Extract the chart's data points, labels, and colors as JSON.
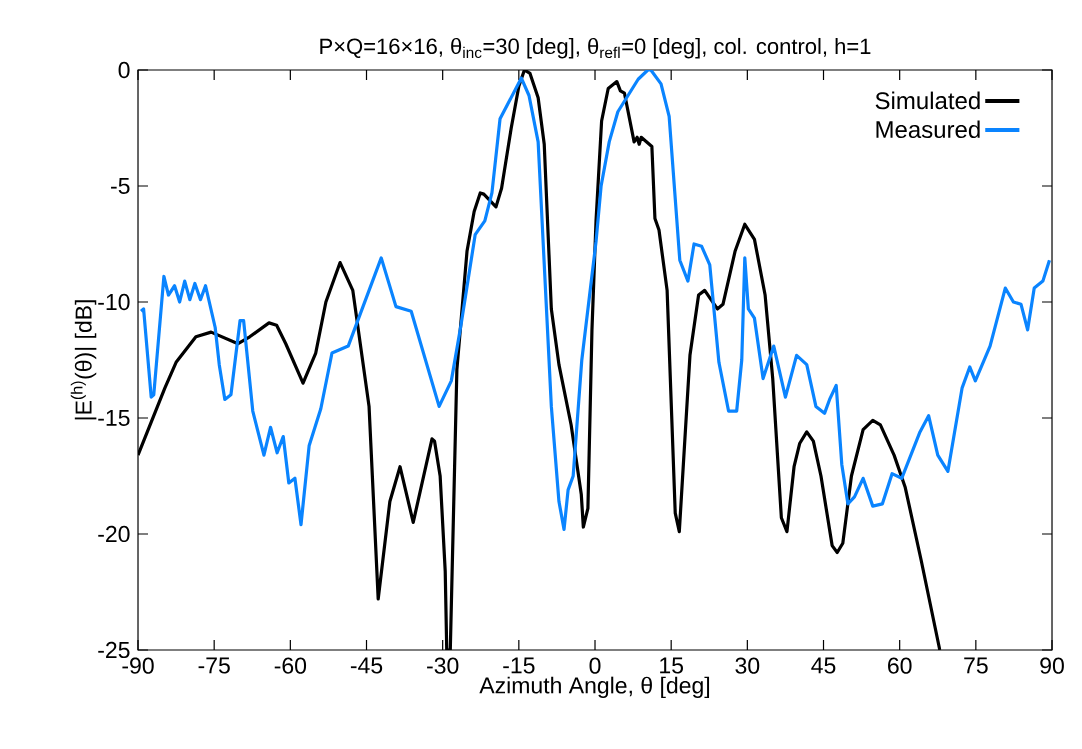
{
  "chart_data": {
    "type": "line",
    "title": "P×Q=16×16, θ$_{inc}$=30 [deg], θ$_{refl}$=0 [deg], col. control, h=1",
    "xlabel": "Azimuth Angle, θ [deg]",
    "ylabel": "|E$^{(h)}$(θ)| [dB]",
    "xlim": [
      -90,
      90
    ],
    "ylim": [
      -25,
      0
    ],
    "xticks": [
      -90,
      -75,
      -60,
      -45,
      -30,
      -15,
      0,
      15,
      30,
      45,
      60,
      75,
      90
    ],
    "yticks": [
      -25,
      -20,
      -15,
      -10,
      -5,
      0
    ],
    "grid": false,
    "legend": "top right",
    "marker": "none",
    "line_style": "solid",
    "series": [
      {
        "name": "Simulated",
        "color": "#000000",
        "x": [
          -90,
          -84.7,
          -82.5,
          -78.6,
          -75.6,
          -70.3,
          -68,
          -64.2,
          -62.7,
          -60.9,
          -57.5,
          -55,
          -53,
          -50.2,
          -47.7,
          -44.5,
          -42.7,
          -40.4,
          -38.4,
          -35.8,
          -32.1,
          -31.6,
          -30.5,
          -29.5,
          -29.2,
          -28.5,
          -27.2,
          -25.2,
          -23.8,
          -22.6,
          -21.9,
          -19.5,
          -18.4,
          -16.5,
          -15,
          -13.9,
          -12.8,
          -11.2,
          -10,
          -8.6,
          -7.1,
          -4.7,
          -2.7,
          -2.3,
          -1.4,
          -0.6,
          0.2,
          1.3,
          2.6,
          4.3,
          5,
          5.8,
          7.7,
          8.3,
          8.7,
          9.1,
          11.2,
          11.8,
          12.6,
          14.2,
          15.8,
          16.6,
          17.4,
          18.7,
          20.4,
          21.6,
          24.1,
          25.2,
          27.6,
          29.5,
          31.4,
          33.5,
          35,
          36.7,
          37.8,
          39.2,
          40.3,
          41.7,
          43,
          44.5,
          46.7,
          47.7,
          48.8,
          50.5,
          52.8,
          54.7,
          56.2,
          58.9,
          61.1,
          64.2,
          67.9
        ],
        "values": [
          -16.6,
          -13.7,
          -12.6,
          -11.5,
          -11.3,
          -11.8,
          -11.5,
          -10.9,
          -11,
          -11.8,
          -13.5,
          -12.2,
          -10,
          -8.3,
          -9.5,
          -14.5,
          -22.8,
          -18.6,
          -17.1,
          -19.5,
          -15.9,
          -16,
          -17.5,
          -21.6,
          -25,
          -25,
          -12.9,
          -7.8,
          -6.1,
          -5.3,
          -5.35,
          -5.9,
          -5.1,
          -2.5,
          -0.7,
          0,
          -0.15,
          -1.2,
          -3.2,
          -10.3,
          -12.7,
          -15.3,
          -18.3,
          -19.7,
          -18.9,
          -11.2,
          -6.5,
          -2.2,
          -0.8,
          -0.5,
          -0.9,
          -1,
          -3.1,
          -2.9,
          -3.2,
          -2.9,
          -3.3,
          -6.4,
          -6.9,
          -9.5,
          -19.1,
          -19.9,
          -17,
          -12.3,
          -9.7,
          -9.5,
          -10.3,
          -10.1,
          -7.8,
          -6.65,
          -7.3,
          -9.7,
          -13.3,
          -19.3,
          -19.9,
          -17.1,
          -16.1,
          -15.6,
          -16,
          -17.5,
          -20.5,
          -20.8,
          -20.4,
          -17.5,
          -15.5,
          -15.1,
          -15.3,
          -16.6,
          -18,
          -21.1,
          -25
        ]
      },
      {
        "name": "Measured",
        "color": "#0a84ff",
        "x": [
          -89.4,
          -88.9,
          -87.4,
          -86.9,
          -84.9,
          -84,
          -82.8,
          -81.8,
          -80.8,
          -79.8,
          -78.8,
          -77.7,
          -76.7,
          -74.8,
          -74,
          -72.9,
          -71.7,
          -69.9,
          -69.2,
          -67.4,
          -65.2,
          -63.9,
          -62.6,
          -61.4,
          -60.3,
          -59.1,
          -57.9,
          -56.3,
          -54,
          -51.8,
          -48.6,
          -42.1,
          -39.2,
          -36.2,
          -30.7,
          -28.3,
          -26.4,
          -23.6,
          -21.7,
          -20.3,
          -18.7,
          -14.5,
          -13,
          -11.2,
          -8.6,
          -7.1,
          -6.1,
          -5.3,
          -4.3,
          -2.6,
          0.2,
          1.2,
          2.8,
          4.5,
          8.5,
          10.4,
          11,
          13,
          14.6,
          16.7,
          18.3,
          19.5,
          21,
          22.6,
          24.4,
          26.3,
          27.9,
          28.9,
          29.5,
          30.2,
          31.4,
          33.1,
          35.2,
          37.5,
          39.7,
          41.7,
          43.5,
          45.2,
          46.2,
          47.5,
          48.6,
          49.8,
          51.1,
          52.8,
          54.7,
          56.6,
          58.5,
          60.4,
          62.2,
          64,
          65.7,
          67.5,
          69.5,
          72.3,
          73.8,
          74.9,
          77.8,
          80.8,
          82.4,
          83.9,
          85.2,
          86.5,
          88.2,
          89.5
        ],
        "values": [
          -10.4,
          -10.3,
          -14.1,
          -14,
          -8.9,
          -9.7,
          -9.3,
          -10,
          -9.1,
          -9.9,
          -9.2,
          -9.9,
          -9.3,
          -11.1,
          -12.7,
          -14.2,
          -14,
          -10.8,
          -10.8,
          -14.7,
          -16.6,
          -15.4,
          -16.5,
          -15.8,
          -17.8,
          -17.6,
          -19.6,
          -16.2,
          -14.6,
          -12.2,
          -11.9,
          -8.1,
          -10.2,
          -10.4,
          -14.5,
          -13.4,
          -11,
          -7.1,
          -6.5,
          -5.3,
          -2.1,
          -0.35,
          -1.1,
          -3.1,
          -14.5,
          -18.6,
          -19.8,
          -18.1,
          -17.5,
          -12.5,
          -7.4,
          -5,
          -3.1,
          -1.8,
          -0.4,
          0,
          0,
          -0.6,
          -2,
          -8.2,
          -9.1,
          -7.5,
          -7.6,
          -8.4,
          -12.6,
          -14.7,
          -14.7,
          -12.5,
          -8.1,
          -10.3,
          -10.7,
          -13.3,
          -11.9,
          -14.1,
          -12.3,
          -12.7,
          -14.5,
          -14.8,
          -14.2,
          -13.6,
          -17,
          -18.7,
          -18.4,
          -17.6,
          -18.8,
          -18.7,
          -17.4,
          -17.6,
          -16.6,
          -15.6,
          -14.9,
          -16.6,
          -17.3,
          -13.7,
          -12.8,
          -13.4,
          -11.9,
          -9.4,
          -10,
          -10.1,
          -11.2,
          -9.4,
          -9.1,
          -8.2
        ]
      }
    ]
  }
}
